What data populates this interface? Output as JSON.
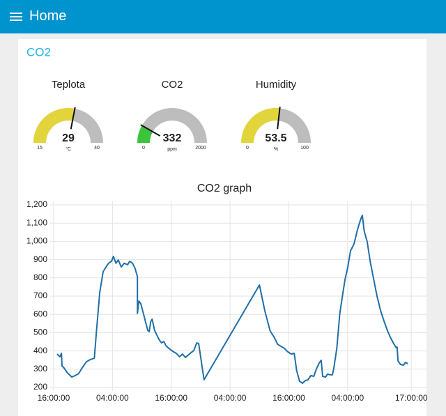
{
  "header": {
    "title": "Home"
  },
  "group": {
    "title": "CO2"
  },
  "chart_data": [
    {
      "type": "gauge",
      "title": "Teplota",
      "value": 29,
      "min": 15,
      "max": 40,
      "unit": "°C",
      "color": "#e2d53c"
    },
    {
      "type": "gauge",
      "title": "CO2",
      "value": 332,
      "min": 0,
      "max": 2000,
      "unit": "ppm",
      "color": "#3cc43c"
    },
    {
      "type": "gauge",
      "title": "Humidity",
      "value": 53.5,
      "min": 0,
      "max": 100,
      "unit": "%",
      "color": "#e2d53c"
    },
    {
      "type": "line",
      "title": "CO2 graph",
      "color": "#1f6fa8",
      "grid": true,
      "x": [
        0.7,
        1.3,
        1.6,
        1.7,
        2.1,
        2.8,
        3.7,
        4.4,
        5.1,
        5.8,
        6.7,
        7.5,
        8.3,
        8.7,
        9.4,
        10.1,
        10.7,
        11.2,
        11.8,
        12.2,
        12.7,
        13.2,
        13.8,
        14.4,
        15.1,
        15.5,
        16.1,
        16.6,
        17.1,
        17.1,
        17.4,
        17.8,
        18.5,
        19.2,
        19.5,
        19.8,
        20.1,
        20.6,
        21.5,
        22.0,
        22.5,
        22.9,
        23.5,
        24.3,
        25.0,
        25.7,
        26.3,
        26.9,
        27.7,
        28.6,
        29.2,
        29.6,
        30.0,
        30.7,
        42.0,
        43.1,
        44.2,
        45.0,
        45.7,
        46.4,
        47.1,
        47.8,
        48.5,
        49.1,
        49.6,
        50.2,
        50.8,
        51.4,
        51.9,
        52.5,
        53.1,
        53.6,
        54.2,
        54.6,
        54.9,
        55.5,
        55.9,
        56.5,
        56.9,
        57.2,
        57.8,
        58.4,
        59.0,
        59.5,
        60.0,
        60.6,
        61.3,
        62.0,
        62.6,
        63.0,
        63.4,
        64.0,
        64.6,
        65.3,
        66.0,
        66.7,
        67.4,
        68.1,
        68.7,
        69.4,
        69.9,
        70.1,
        70.3,
        70.8,
        71.4,
        71.8,
        72.3
      ],
      "values": [
        383,
        368,
        387,
        318,
        307,
        280,
        257,
        265,
        276,
        307,
        341,
        353,
        360,
        498,
        719,
        834,
        860,
        880,
        891,
        918,
        880,
        898,
        860,
        880,
        872,
        891,
        880,
        853,
        807,
        605,
        673,
        658,
        585,
        513,
        505,
        559,
        574,
        513,
        463,
        444,
        452,
        429,
        414,
        398,
        387,
        368,
        383,
        364,
        383,
        402,
        444,
        440,
        368,
        242,
        761,
        620,
        509,
        475,
        437,
        425,
        414,
        395,
        383,
        387,
        292,
        234,
        223,
        238,
        242,
        265,
        261,
        299,
        334,
        349,
        261,
        257,
        273,
        269,
        269,
        307,
        414,
        605,
        711,
        795,
        853,
        948,
        986,
        1063,
        1116,
        1143,
        1055,
        998,
        891,
        795,
        700,
        624,
        566,
        513,
        475,
        440,
        418,
        421,
        345,
        326,
        322,
        337,
        330
      ],
      "xlim": [
        0,
        76.1
      ],
      "xticks": [
        {
          "value": 0,
          "label": "16:00:00"
        },
        {
          "value": 12,
          "label": "04:00:00"
        },
        {
          "value": 24,
          "label": "16:00:00"
        },
        {
          "value": 36,
          "label": "04:00:00"
        },
        {
          "value": 48,
          "label": "16:00:00"
        },
        {
          "value": 60,
          "label": "04:00:00"
        },
        {
          "value": 73,
          "label": "17:00:00"
        }
      ],
      "ylim": [
        200,
        1200
      ],
      "yticks": [
        200,
        300,
        400,
        500,
        600,
        700,
        800,
        900,
        {
          "value": 1000,
          "label": "1,000"
        },
        {
          "value": 1100,
          "label": "1,100"
        },
        {
          "value": 1200,
          "label": "1,200"
        }
      ]
    }
  ]
}
